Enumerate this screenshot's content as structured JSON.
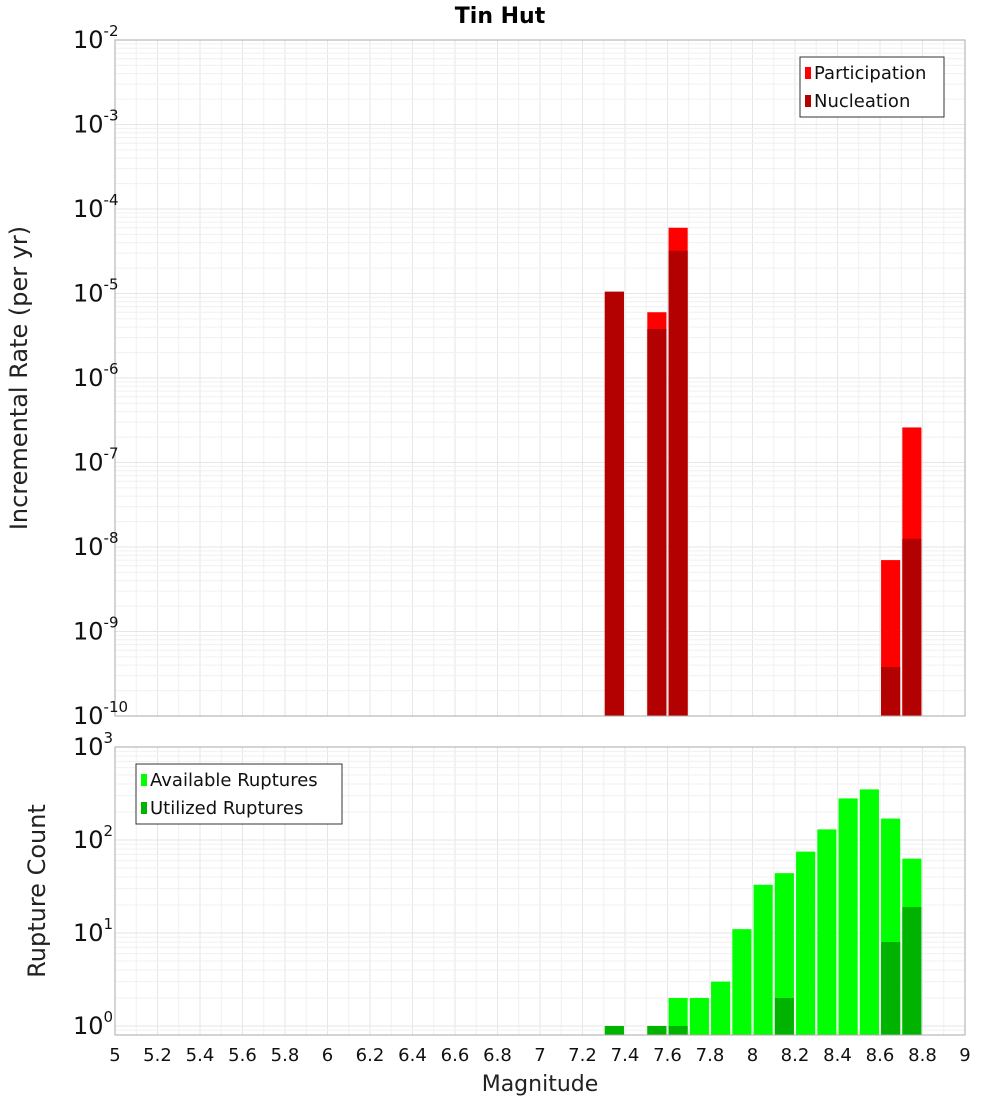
{
  "chart_data": [
    {
      "type": "bar",
      "title": "Tin Hut",
      "xlabel": "",
      "ylabel": "Incremental Rate (per yr)",
      "y_scale": "log",
      "xlim": [
        5,
        9
      ],
      "ylim": [
        1e-10,
        0.01
      ],
      "grid": true,
      "legend_position": "top-right",
      "y_ticks": [
        {
          "base": "10",
          "exp": "-10"
        },
        {
          "base": "10",
          "exp": "-9"
        },
        {
          "base": "10",
          "exp": "-8"
        },
        {
          "base": "10",
          "exp": "-7"
        },
        {
          "base": "10",
          "exp": "-6"
        },
        {
          "base": "10",
          "exp": "-5"
        },
        {
          "base": "10",
          "exp": "-4"
        },
        {
          "base": "10",
          "exp": "-3"
        },
        {
          "base": "10",
          "exp": "-2"
        }
      ],
      "series": [
        {
          "name": "Participation",
          "color": "#ff0000",
          "x": [
            7.35,
            7.55,
            7.65,
            8.65,
            8.75
          ],
          "values": [
            1.05e-05,
            6e-06,
            6e-05,
            7e-09,
            2.6e-07
          ]
        },
        {
          "name": "Nucleation",
          "color": "#b30000",
          "x": [
            7.35,
            7.55,
            7.65,
            8.65,
            8.75
          ],
          "values": [
            1.05e-05,
            3.8e-06,
            3.2e-05,
            3.8e-10,
            1.25e-08
          ]
        }
      ]
    },
    {
      "type": "bar",
      "title": "",
      "xlabel": "Magnitude",
      "ylabel": "Rupture Count",
      "y_scale": "log",
      "xlim": [
        5,
        9
      ],
      "ylim": [
        0.8,
        1000
      ],
      "grid": true,
      "legend_position": "top-left",
      "x_ticks": [
        "5",
        "5.2",
        "5.4",
        "5.6",
        "5.8",
        "6",
        "6.2",
        "6.4",
        "6.6",
        "6.8",
        "7",
        "7.2",
        "7.4",
        "7.6",
        "7.8",
        "8",
        "8.2",
        "8.4",
        "8.6",
        "8.8",
        "9"
      ],
      "y_ticks": [
        {
          "base": "10",
          "exp": "0"
        },
        {
          "base": "10",
          "exp": "1"
        },
        {
          "base": "10",
          "exp": "2"
        },
        {
          "base": "10",
          "exp": "3"
        }
      ],
      "series": [
        {
          "name": "Available Ruptures",
          "color": "#00ff00",
          "x": [
            7.35,
            7.55,
            7.65,
            7.75,
            7.85,
            7.95,
            8.05,
            8.15,
            8.25,
            8.35,
            8.45,
            8.55,
            8.65,
            8.75
          ],
          "values": [
            1,
            1,
            2,
            2,
            3,
            11,
            33,
            44,
            75,
            130,
            280,
            350,
            170,
            63
          ]
        },
        {
          "name": "Utilized Ruptures",
          "color": "#00b300",
          "x": [
            7.35,
            7.55,
            7.65,
            8.15,
            8.65,
            8.75
          ],
          "values": [
            1,
            1,
            1,
            2,
            8,
            19
          ]
        }
      ]
    }
  ]
}
